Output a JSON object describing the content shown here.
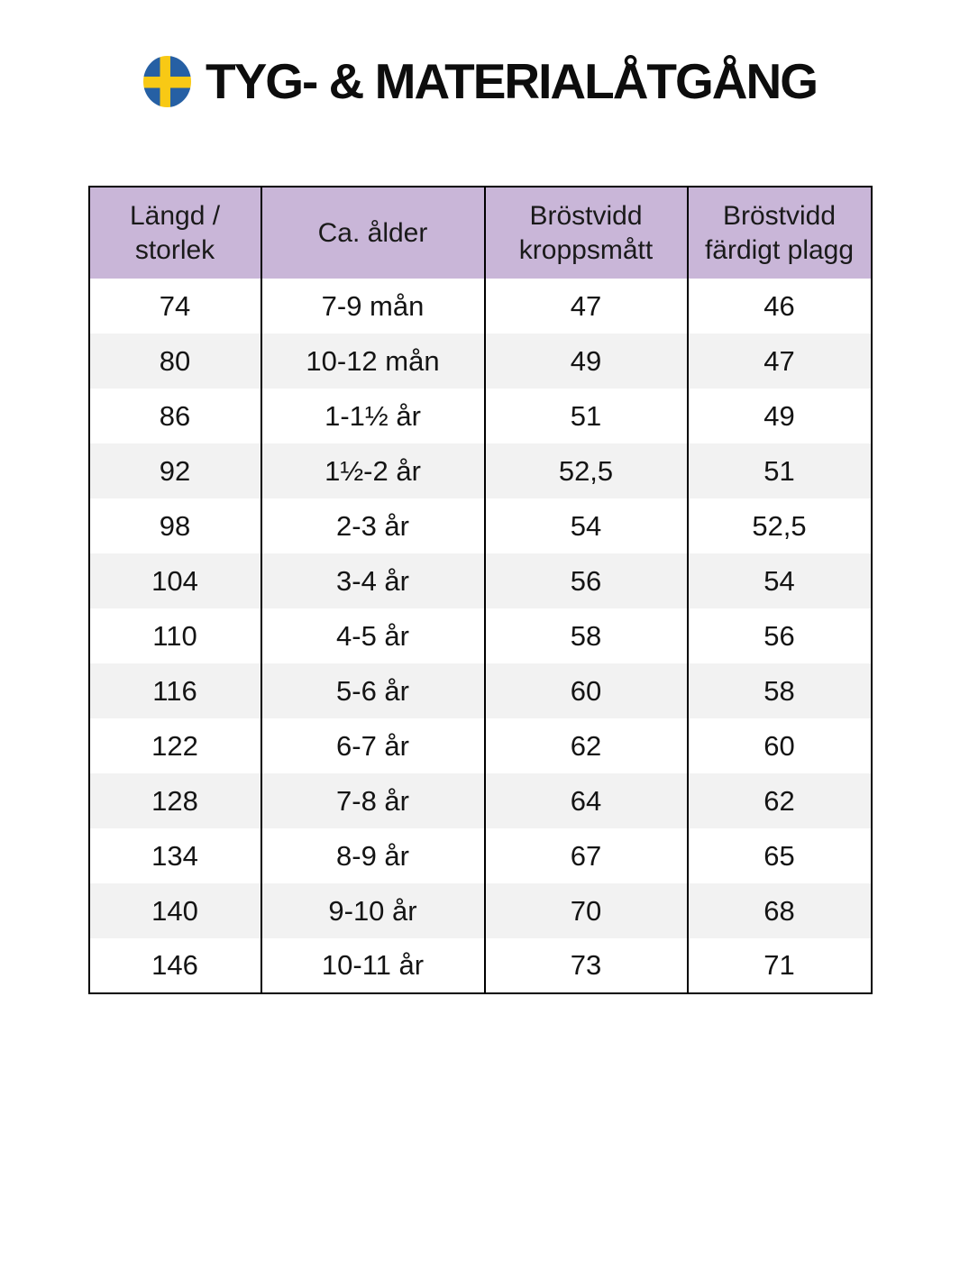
{
  "page": {
    "title": "TYG- & MATERIALÅTGÅNG"
  },
  "icons": {
    "flag": "swedish-flag"
  },
  "colors": {
    "header_bg": "#c9b6d8",
    "alt_row_bg": "#f2f2f2",
    "border": "#000000",
    "flag_blue": "#2660a4",
    "flag_yellow": "#f8c915",
    "text": "#141414"
  },
  "table": {
    "headers": [
      {
        "lines": [
          "Längd /",
          "storlek"
        ]
      },
      {
        "lines": [
          "Ca. ålder"
        ]
      },
      {
        "lines": [
          "Bröstvidd",
          "kroppsmått"
        ]
      },
      {
        "lines": [
          "Bröstvidd",
          "färdigt plagg"
        ]
      }
    ],
    "rows": [
      [
        "74",
        "7-9 mån",
        "47",
        "46"
      ],
      [
        "80",
        "10-12 mån",
        "49",
        "47"
      ],
      [
        "86",
        "1-1½ år",
        "51",
        "49"
      ],
      [
        "92",
        "1½-2 år",
        "52,5",
        "51"
      ],
      [
        "98",
        "2-3 år",
        "54",
        "52,5"
      ],
      [
        "104",
        "3-4 år",
        "56",
        "54"
      ],
      [
        "110",
        "4-5 år",
        "58",
        "56"
      ],
      [
        "116",
        "5-6 år",
        "60",
        "58"
      ],
      [
        "122",
        "6-7 år",
        "62",
        "60"
      ],
      [
        "128",
        "7-8 år",
        "64",
        "62"
      ],
      [
        "134",
        "8-9 år",
        "67",
        "65"
      ],
      [
        "140",
        "9-10 år",
        "70",
        "68"
      ],
      [
        "146",
        "10-11 år",
        "73",
        "71"
      ]
    ]
  }
}
